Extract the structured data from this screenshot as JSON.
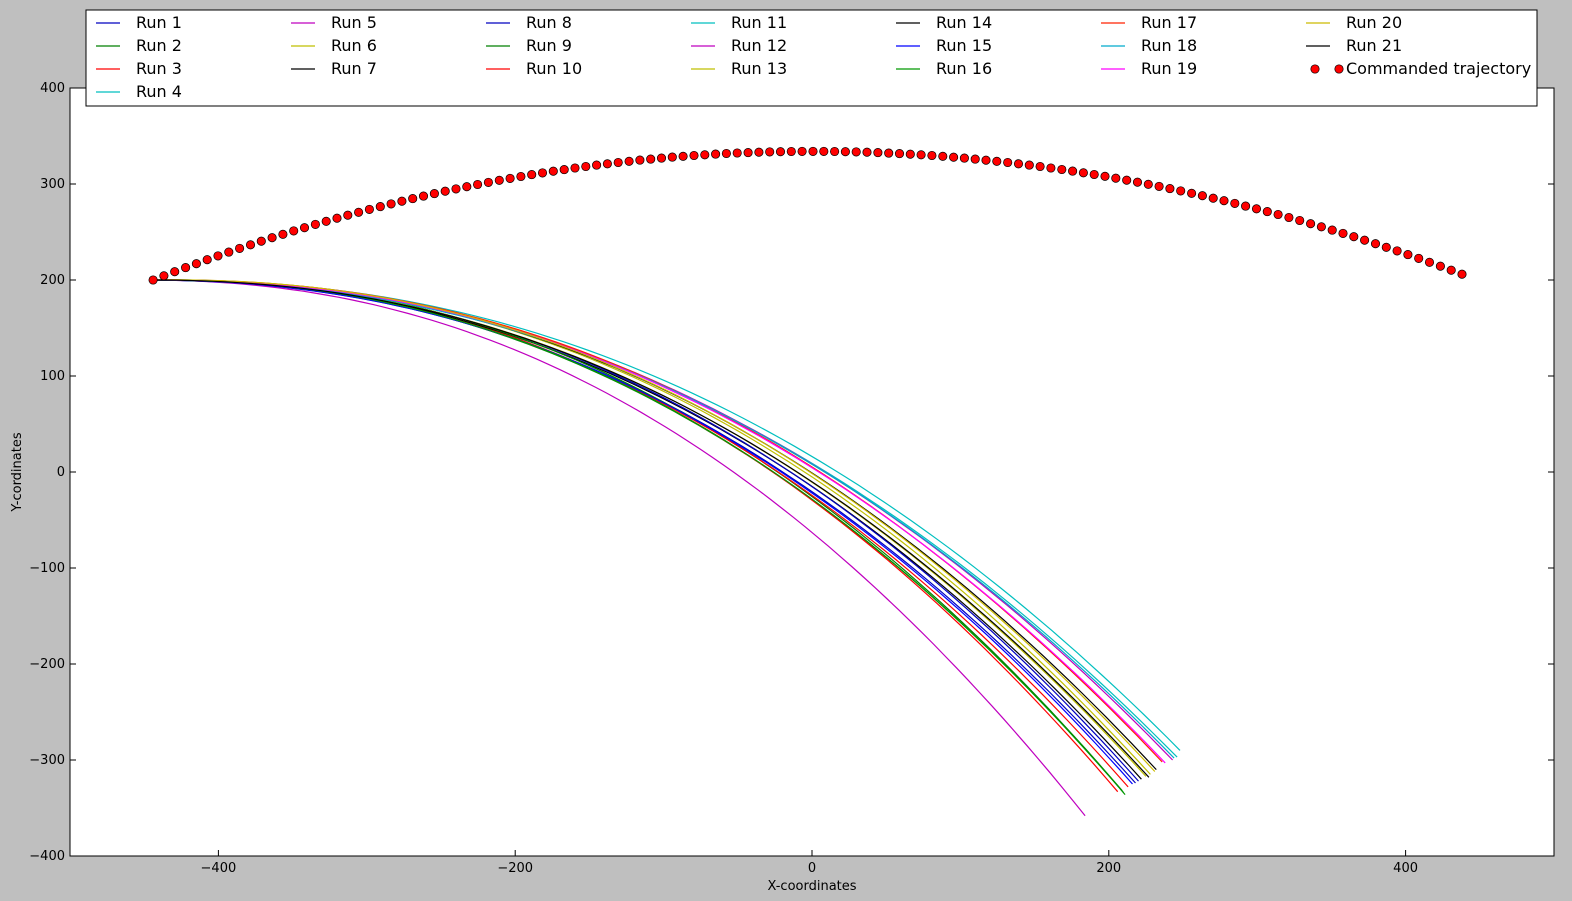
{
  "chart_data": {
    "type": "line",
    "xlabel": "X-coordinates",
    "ylabel": "Y-cordinates",
    "xlim": [
      -500,
      500
    ],
    "ylim": [
      -400,
      400
    ],
    "xticks": [
      -400,
      -200,
      0,
      200,
      400
    ],
    "yticks": [
      -400,
      -300,
      -200,
      -100,
      0,
      100,
      200,
      300,
      400
    ],
    "grid": false,
    "legend_position": "top",
    "series": [
      {
        "name": "Run 1",
        "color": "#0000bf",
        "end": [
          218,
          -324
        ]
      },
      {
        "name": "Run 2",
        "color": "#007f00",
        "end": [
          210,
          -334
        ]
      },
      {
        "name": "Run 3",
        "color": "#ff0000",
        "end": [
          206,
          -333
        ]
      },
      {
        "name": "Run 4",
        "color": "#00bfbf",
        "end": [
          246,
          -297
        ]
      },
      {
        "name": "Run 5",
        "color": "#bf00bf",
        "end": [
          243,
          -300
        ]
      },
      {
        "name": "Run 6",
        "color": "#bfbf00",
        "end": [
          228,
          -315
        ]
      },
      {
        "name": "Run 7",
        "color": "#000000",
        "end": [
          222,
          -320
        ]
      },
      {
        "name": "Run 8",
        "color": "#0000bf",
        "end": [
          220,
          -322
        ]
      },
      {
        "name": "Run 9",
        "color": "#007f00",
        "end": [
          209,
          -332
        ]
      },
      {
        "name": "Run 10",
        "color": "#ff0000",
        "end": [
          213,
          -328
        ]
      },
      {
        "name": "Run 11",
        "color": "#00bfbf",
        "end": [
          248,
          -290
        ]
      },
      {
        "name": "Run 12",
        "color": "#bf00bf",
        "end": [
          184,
          -358
        ]
      },
      {
        "name": "Run 13",
        "color": "#bfbf00",
        "end": [
          225,
          -317
        ]
      },
      {
        "name": "Run 14",
        "color": "#000000",
        "end": [
          232,
          -310
        ]
      },
      {
        "name": "Run 15",
        "color": "#0000ff",
        "end": [
          216,
          -325
        ]
      },
      {
        "name": "Run 16",
        "color": "#009900",
        "end": [
          211,
          -336
        ]
      },
      {
        "name": "Run 17",
        "color": "#ff2200",
        "end": [
          236,
          -302
        ]
      },
      {
        "name": "Run 18",
        "color": "#00aacc",
        "end": [
          244,
          -298
        ]
      },
      {
        "name": "Run 19",
        "color": "#ff00ff",
        "end": [
          238,
          -303
        ]
      },
      {
        "name": "Run 20",
        "color": "#ccbb00",
        "end": [
          231,
          -312
        ]
      },
      {
        "name": "Run 21",
        "color": "#000000",
        "end": [
          227,
          -318
        ]
      }
    ],
    "run_start": [
      -445,
      200
    ],
    "commanded_trajectory": {
      "name": "Commanded trajectory",
      "color": "#ff0000",
      "x_start": -444,
      "x_end": 438,
      "points": 122,
      "y_start": 200,
      "y_peak": 334,
      "x_peak": 0,
      "y_end": 206
    }
  }
}
